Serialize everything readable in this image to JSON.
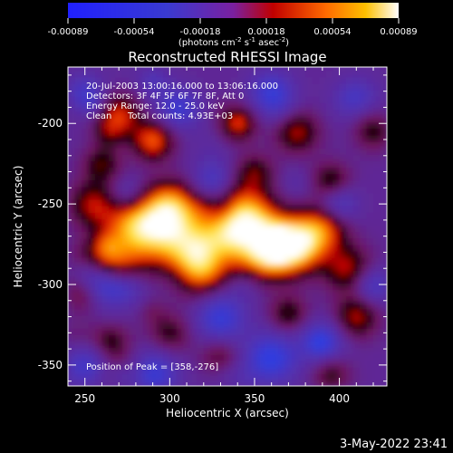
{
  "chart_data": {
    "type": "heatmap",
    "title": "Reconstructed RHESSI Image",
    "xlabel": "Heliocentric X (arcsec)",
    "ylabel": "Heliocentric Y (arcsec)",
    "xlim": [
      240,
      428
    ],
    "ylim": [
      -363,
      -165
    ],
    "xticks": [
      250,
      300,
      350,
      400
    ],
    "yticks": [
      -200,
      -250,
      -300,
      -350
    ],
    "colorbar": {
      "ticks": [
        "-0.00089",
        "-0.00054",
        "-0.00018",
        "0.00018",
        "0.00054",
        "0.00089"
      ],
      "unit_prefix": "(photons cm",
      "unit_sup1": "-2",
      "unit_mid": " s",
      "unit_sup2": "-1",
      "unit_mid2": " asec",
      "unit_sup3": "-2",
      "unit_suffix": ")",
      "range": [
        -0.00089,
        0.00089
      ]
    },
    "annotations": {
      "line1": "20-Jul-2003 13:00:16.000 to 13:06:16.000",
      "line2": "Detectors: 3F 4F 5F 6F 7F 8F, Att 0",
      "line3": "Energy Range: 12.0 - 25.0 keV",
      "line4_a": "Clean",
      "line4_b": "Total counts: 4.93E+03",
      "peak": "Position of Peak = [358,-276]"
    },
    "peak": [
      358,
      -276
    ],
    "colors": {
      "background": "#000000",
      "text": "#ffffff"
    }
  },
  "footer": {
    "timestamp": "3-May-2022 23:41"
  }
}
